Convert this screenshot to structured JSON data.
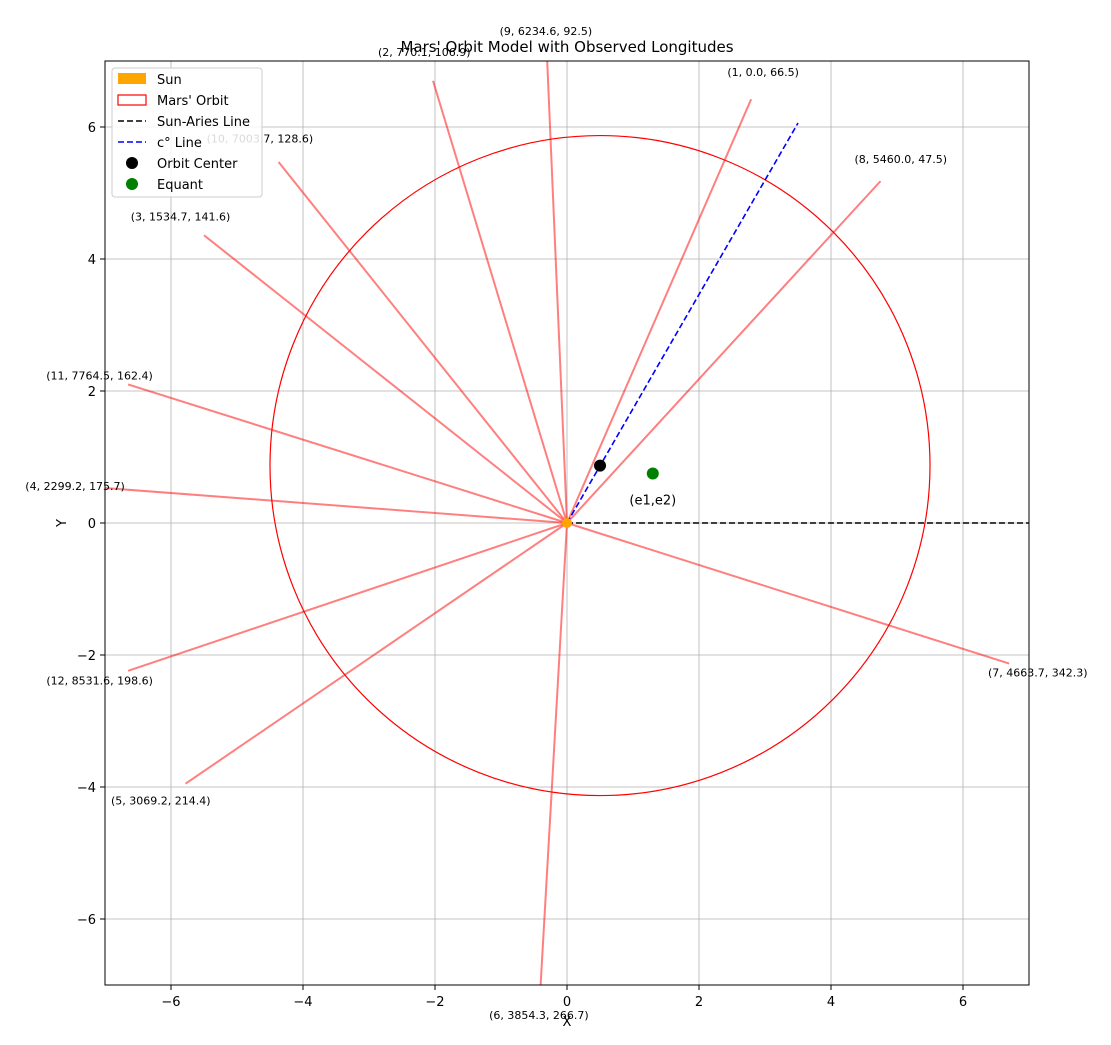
{
  "chart_data": {
    "type": "line",
    "title": "Mars' Orbit Model with Observed Longitudes",
    "xlabel": "X",
    "ylabel": "Y",
    "xlim": [
      -7,
      7
    ],
    "ylim": [
      -7,
      7
    ],
    "grid": true,
    "xticks": [
      -6,
      -4,
      -2,
      0,
      2,
      4,
      6
    ],
    "yticks": [
      -6,
      -4,
      -2,
      0,
      2,
      4,
      6
    ],
    "tick_labels": {
      "x": [
        "−6",
        "−4",
        "−2",
        "0",
        "2",
        "4",
        "6"
      ],
      "y": [
        "−6",
        "−4",
        "−2",
        "0",
        "2",
        "4",
        "6"
      ]
    },
    "sun": {
      "x": 0,
      "y": 0,
      "color": "#ffa500"
    },
    "orbit": {
      "center": [
        0.5,
        0.87
      ],
      "radius": 5.0,
      "color": "#ff0000"
    },
    "orbit_center": {
      "x": 0.5,
      "y": 0.87,
      "color": "#000000"
    },
    "equant": {
      "x": 1.3,
      "y": 0.75,
      "label": "(e1,e2)",
      "color": "#008000"
    },
    "sun_aries_line": {
      "from": [
        0,
        0
      ],
      "to": [
        7,
        0
      ],
      "color": "#000000"
    },
    "c_line": {
      "from": [
        0,
        0
      ],
      "to": [
        3.5,
        6.06
      ],
      "color": "#0000ff"
    },
    "observations": [
      {
        "label": "(1, 0.0, 66.5)",
        "angle": 66.5,
        "end": [
          2.79,
          6.42
        ]
      },
      {
        "label": "(2, 770.1, 106.9)",
        "angle": 106.9,
        "end": [
          -2.03,
          6.7
        ]
      },
      {
        "label": "(3, 1534.7, 141.6)",
        "angle": 141.6,
        "end": [
          -5.5,
          4.36
        ]
      },
      {
        "label": "(4, 2299.2, 175.7)",
        "angle": 175.7,
        "end": [
          -7.0,
          0.53
        ]
      },
      {
        "label": "(5, 3069.2, 214.4)",
        "angle": 214.4,
        "end": [
          -5.78,
          -3.95
        ]
      },
      {
        "label": "(6, 3854.3, 266.7)",
        "angle": 266.7,
        "end": [
          -0.4,
          -7.0
        ]
      },
      {
        "label": "(7, 4663.7, 342.3)",
        "angle": 342.3,
        "end": [
          6.7,
          -2.13
        ]
      },
      {
        "label": "(8, 5460.0, 47.5)",
        "angle": 47.5,
        "end": [
          4.75,
          5.18
        ]
      },
      {
        "label": "(9, 6234.6, 92.5)",
        "angle": 92.5,
        "end": [
          -0.3,
          7.0
        ]
      },
      {
        "label": "(10, 7003.7, 128.6)",
        "angle": 128.6,
        "end": [
          -4.37,
          5.47
        ]
      },
      {
        "label": "(11, 7764.5, 162.4)",
        "angle": 162.4,
        "end": [
          -6.65,
          2.1
        ]
      },
      {
        "label": "(12, 8531.6, 198.6)",
        "angle": 198.6,
        "end": [
          -6.65,
          -2.24
        ]
      }
    ],
    "observation_color": "#ff0000",
    "legend": {
      "position": "upper-left",
      "entries": [
        "Sun",
        "Mars' Orbit",
        "Sun-Aries Line",
        "c° Line",
        "Orbit Center",
        "Equant"
      ]
    }
  }
}
